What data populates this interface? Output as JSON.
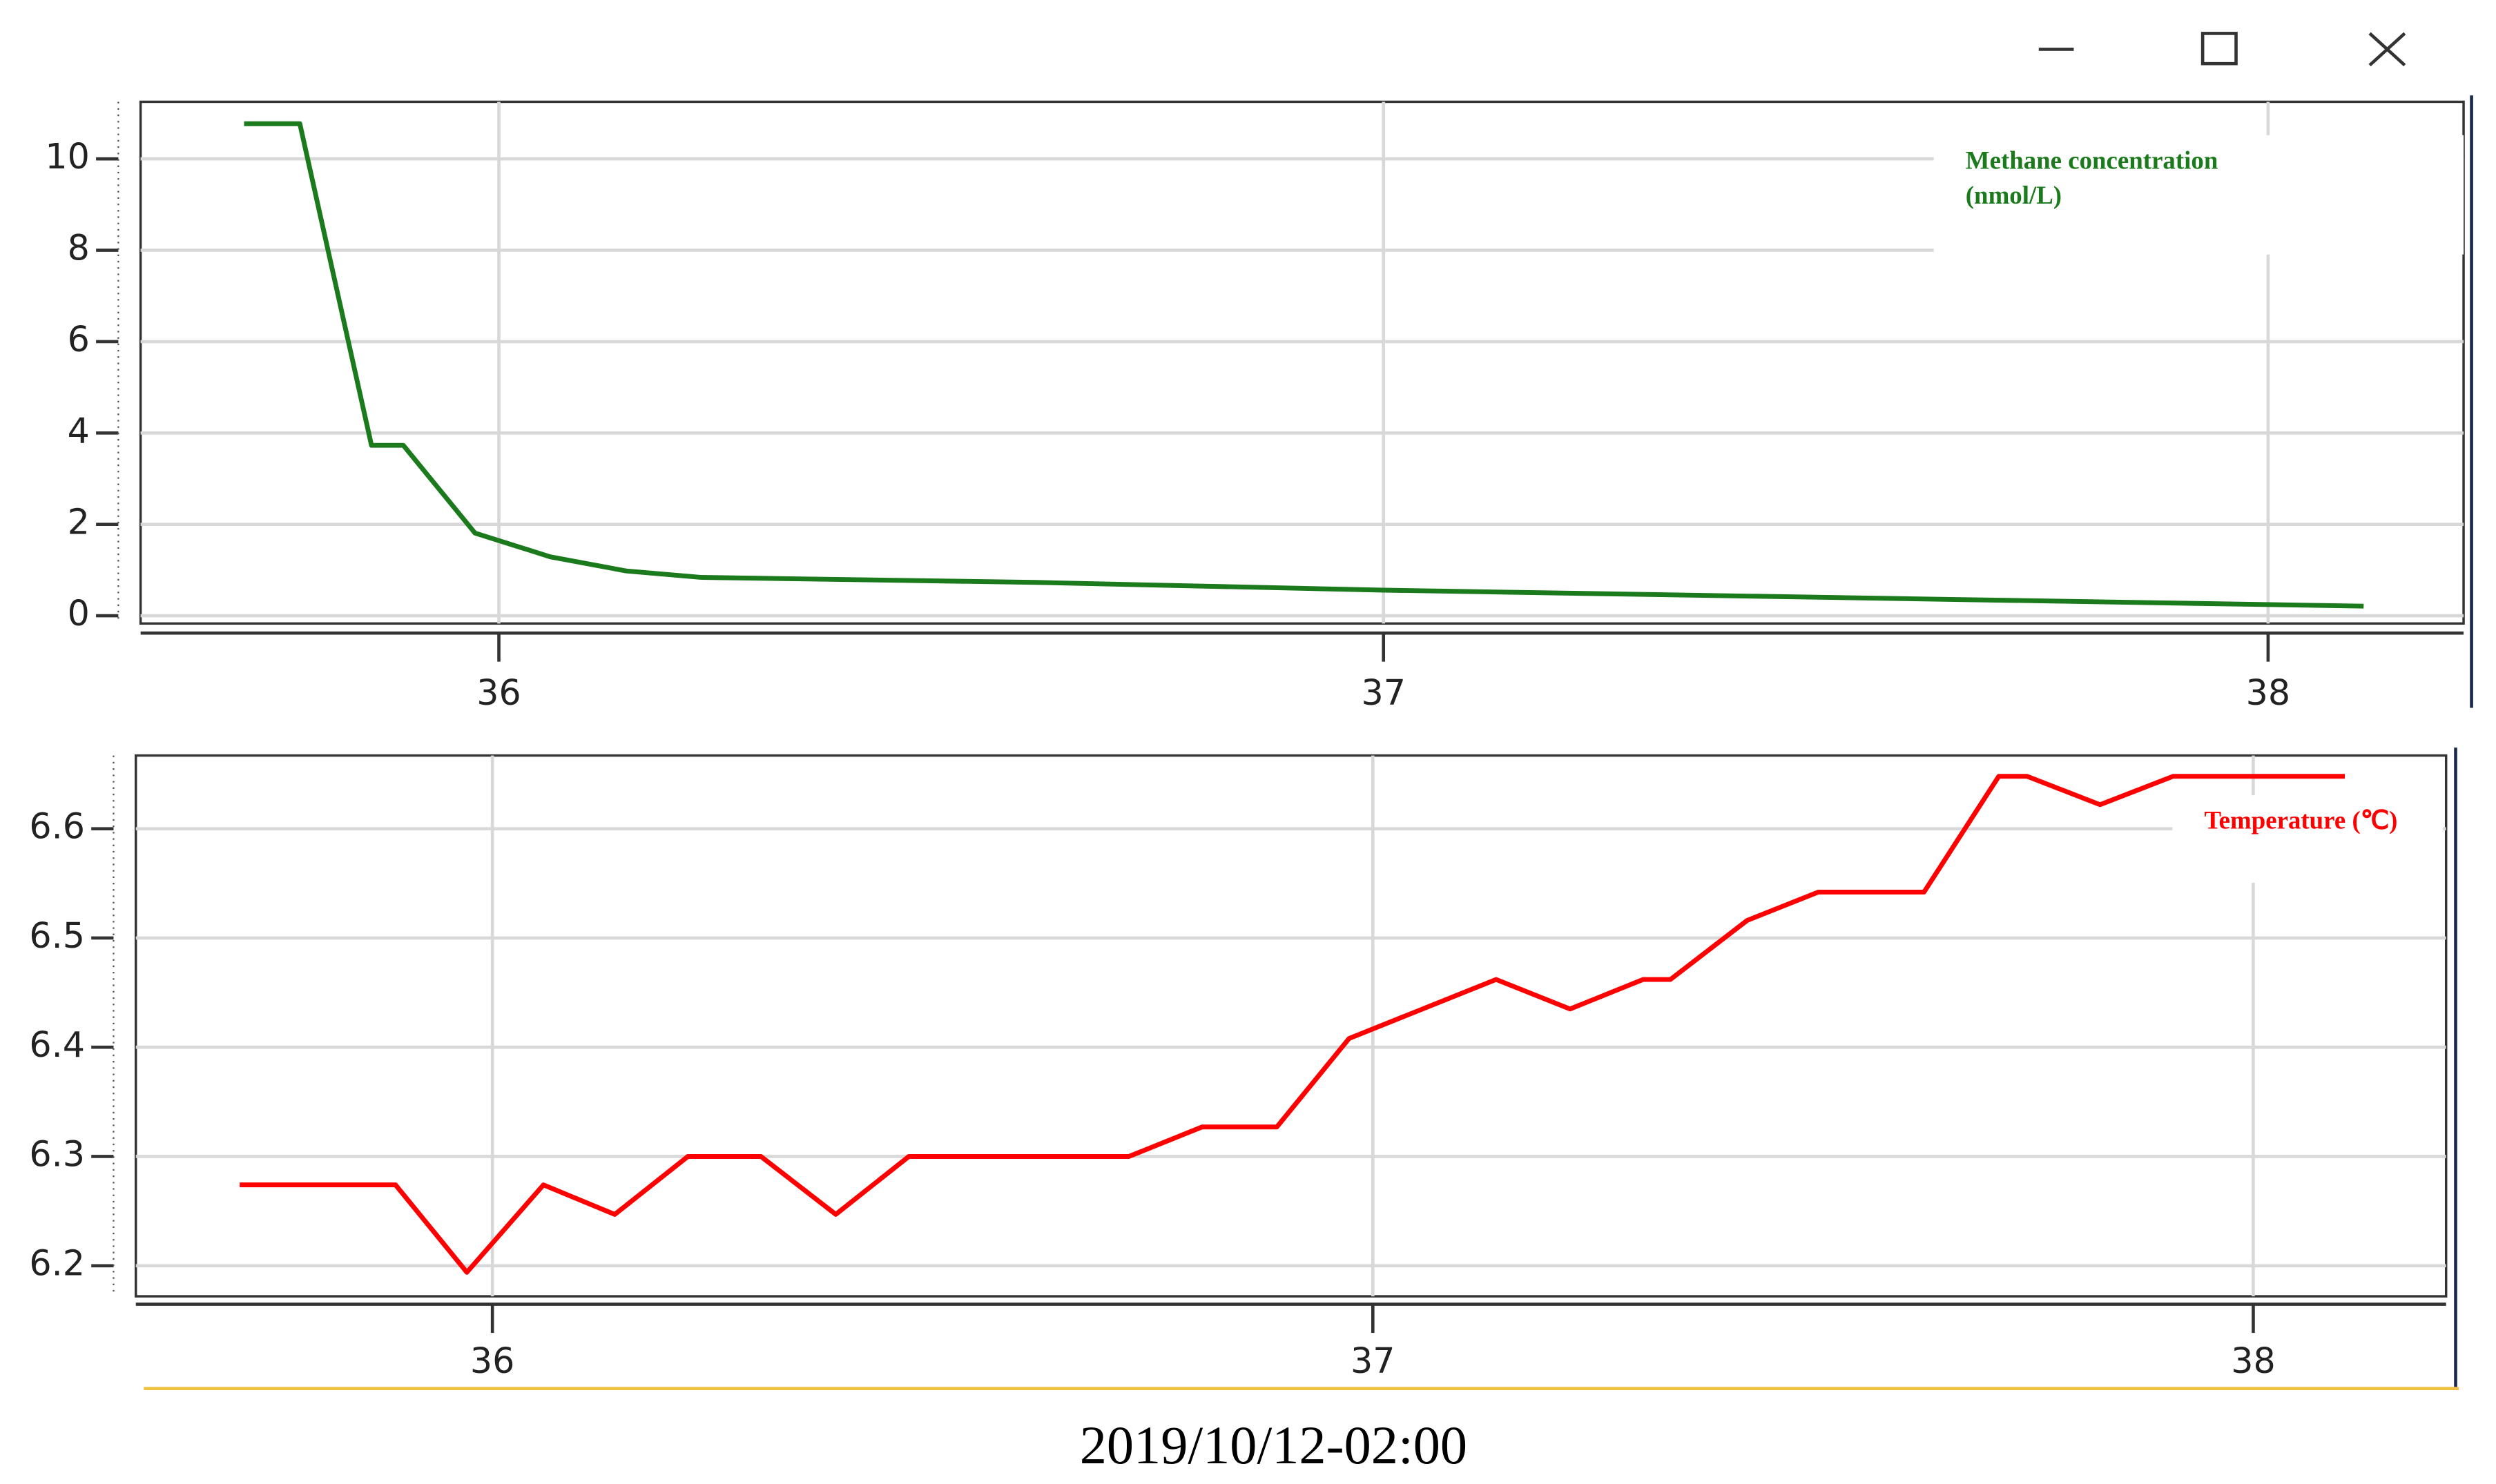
{
  "chart_data": [
    {
      "type": "line",
      "series": [
        {
          "name": "Methane concentration (nmol/L)",
          "color": "#1b7a1b",
          "x": [
            35.712,
            35.775,
            35.856,
            35.892,
            35.973,
            36.058,
            36.144,
            36.228,
            36.606,
            37.0,
            38.108
          ],
          "values": [
            10.77,
            10.77,
            3.73,
            3.73,
            1.81,
            1.29,
            0.98,
            0.84,
            0.73,
            0.56,
            0.21
          ]
        }
      ],
      "xlim": [
        35.595,
        38.221
      ],
      "xticks": [
        36,
        37,
        38
      ],
      "ylim": [
        -0.17,
        11.25
      ],
      "yticks": [
        0,
        2,
        4,
        6,
        8,
        10
      ],
      "grid": true
    },
    {
      "type": "line",
      "series": [
        {
          "name": "Temperature (℃)",
          "color": "#ff0000",
          "x": [
            35.713,
            35.89,
            35.971,
            36.058,
            36.139,
            36.222,
            36.305,
            36.39,
            36.473,
            36.723,
            36.806,
            36.891,
            36.973,
            37.14,
            37.224,
            37.307,
            37.338,
            37.425,
            37.506,
            37.626,
            37.711,
            37.743,
            37.826,
            37.909,
            38.104
          ],
          "values": [
            6.274,
            6.274,
            6.194,
            6.274,
            6.247,
            6.3,
            6.3,
            6.247,
            6.3,
            6.3,
            6.327,
            6.327,
            6.408,
            6.462,
            6.435,
            6.462,
            6.462,
            6.516,
            6.542,
            6.542,
            6.648,
            6.648,
            6.622,
            6.648,
            6.648
          ]
        }
      ],
      "xlim": [
        35.595,
        38.219
      ],
      "xticks": [
        36,
        37,
        38
      ],
      "ylim": [
        6.172,
        6.667
      ],
      "yticks": [
        6.2,
        6.3,
        6.4,
        6.5,
        6.6
      ],
      "grid": true,
      "x_label": "2019/10/12-02:00"
    }
  ]
}
